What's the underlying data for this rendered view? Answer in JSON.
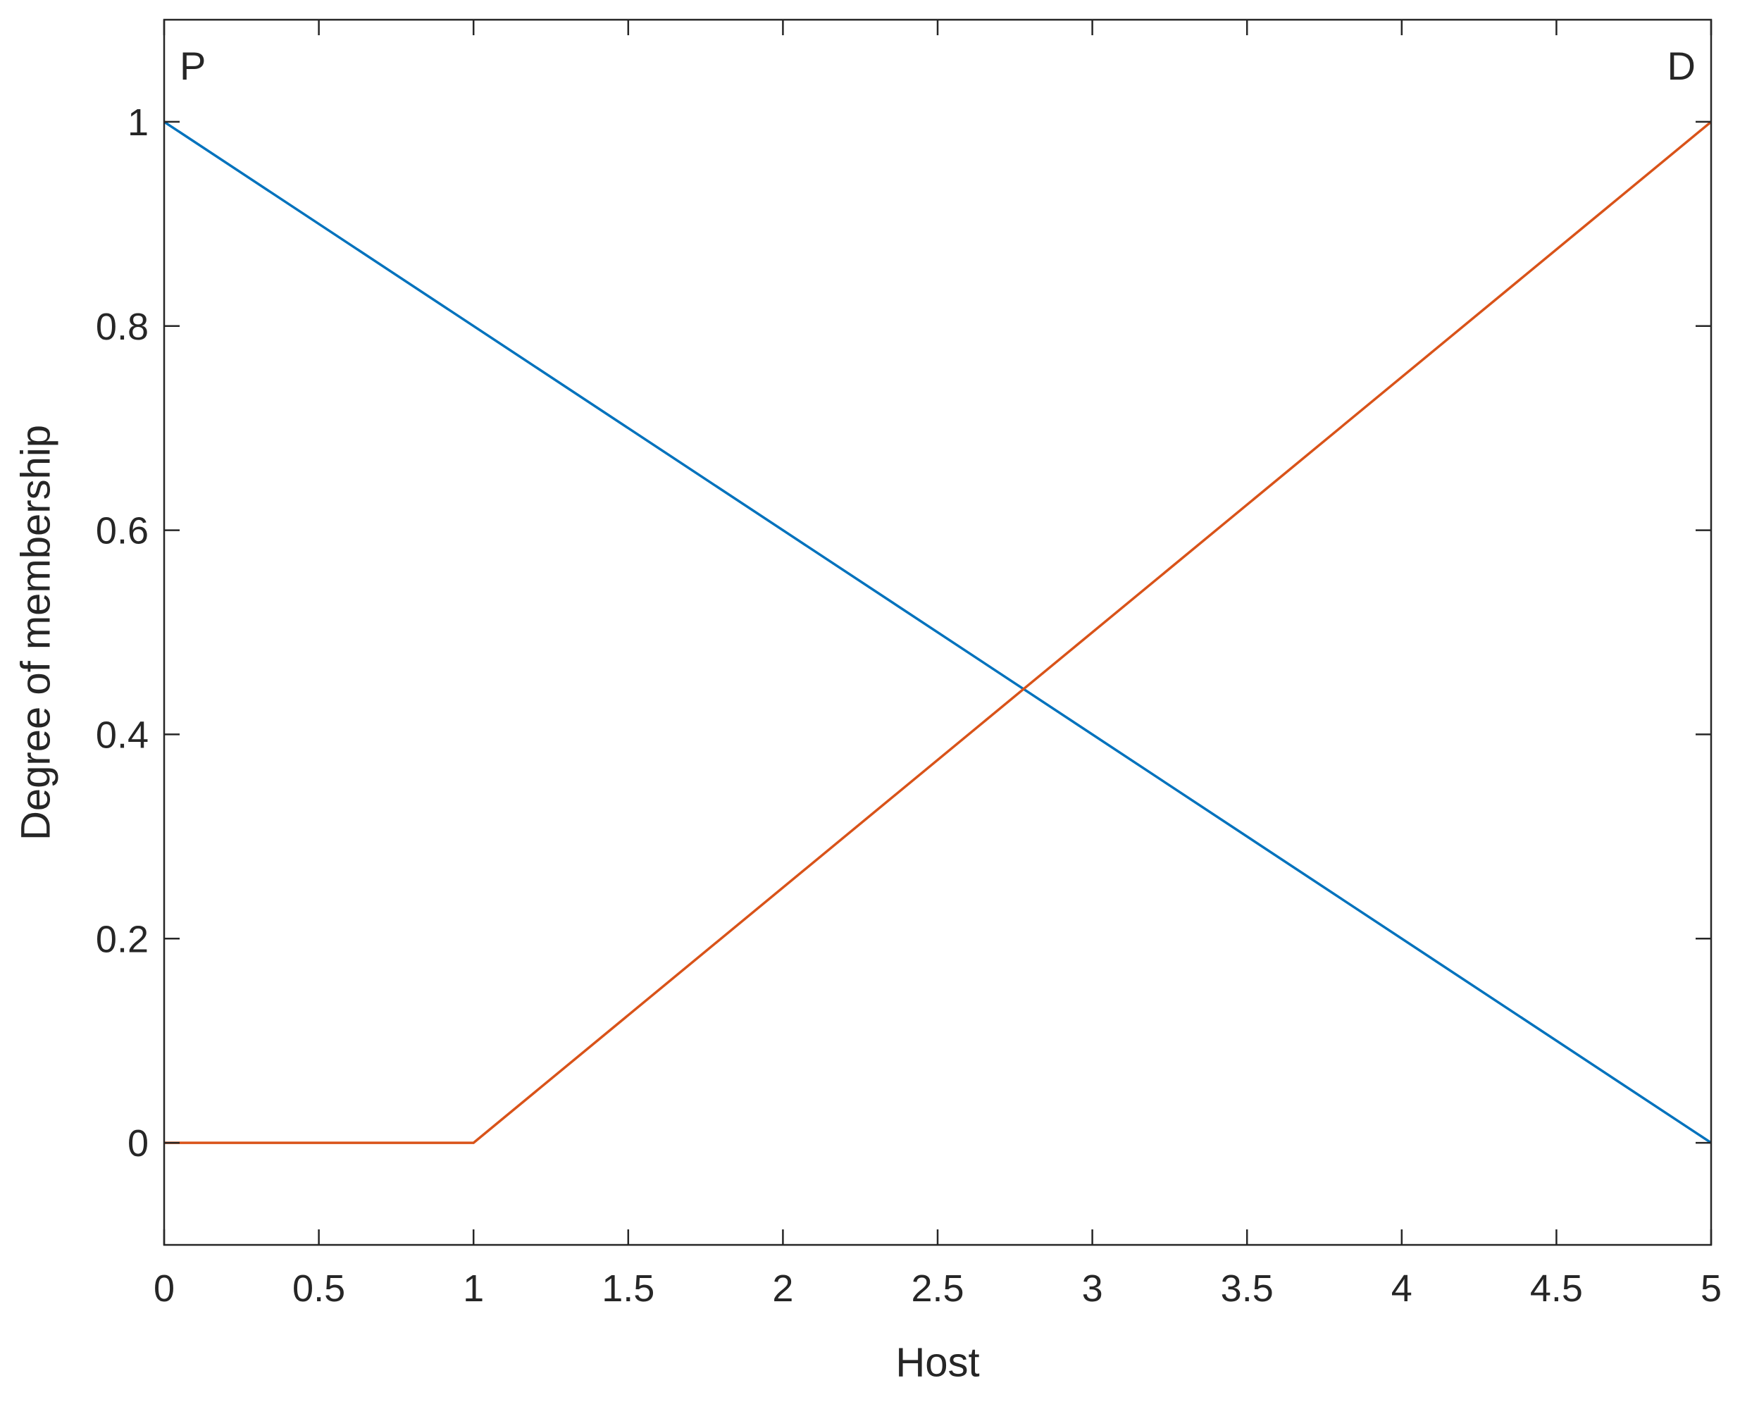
{
  "chart_data": {
    "type": "line",
    "x_label": "Host",
    "y_label": "Degree of membership",
    "xlim": [
      0,
      5
    ],
    "xticks": [
      0,
      0.5,
      1,
      1.5,
      2,
      2.5,
      3,
      3.5,
      4,
      4.5,
      5
    ],
    "ylim": [
      -0.1,
      1.1
    ],
    "yticks": [
      0,
      0.2,
      0.4,
      0.6,
      0.8,
      1
    ],
    "grid": false,
    "series": [
      {
        "name": "P",
        "color": "#0072bd",
        "x": [
          0,
          5
        ],
        "values": [
          1,
          0
        ]
      },
      {
        "name": "D",
        "color": "#d95319",
        "x": [
          0,
          1,
          5
        ],
        "values": [
          0,
          0,
          1
        ]
      }
    ]
  }
}
